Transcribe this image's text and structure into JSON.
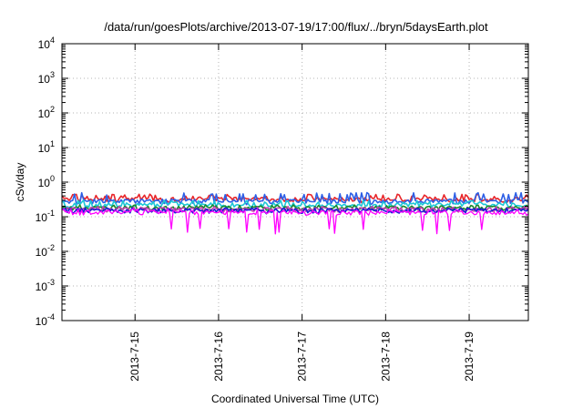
{
  "chart_data": {
    "type": "line",
    "title": "/data/run/goesPlots/archive/2013-07-19/17:00/flux/../bryn/5daysEarth.plot",
    "xlabel": "Coordinated Universal Time (UTC)",
    "ylabel": "cSv/day",
    "yscale": "log",
    "ylim": [
      0.0001,
      10000
    ],
    "xlim": [
      "2013-07-14 03:00",
      "2013-07-19 17:00"
    ],
    "grid": true,
    "y_ticks": [
      {
        "base": "10",
        "exp": "-4",
        "value": 0.0001
      },
      {
        "base": "10",
        "exp": "-3",
        "value": 0.001
      },
      {
        "base": "10",
        "exp": "-2",
        "value": 0.01
      },
      {
        "base": "10",
        "exp": "-1",
        "value": 0.1
      },
      {
        "base": "10",
        "exp": "0",
        "value": 1
      },
      {
        "base": "10",
        "exp": "1",
        "value": 10
      },
      {
        "base": "10",
        "exp": "2",
        "value": 100
      },
      {
        "base": "10",
        "exp": "3",
        "value": 1000
      },
      {
        "base": "10",
        "exp": "4",
        "value": 10000
      }
    ],
    "x_ticks": [
      {
        "label": "2013-7-15",
        "value": "2013-07-15 00:00"
      },
      {
        "label": "2013-7-16",
        "value": "2013-07-16 00:00"
      },
      {
        "label": "2013-7-17",
        "value": "2013-07-17 00:00"
      },
      {
        "label": "2013-7-18",
        "value": "2013-07-18 00:00"
      },
      {
        "label": "2013-7-19",
        "value": "2013-07-19 00:00"
      }
    ],
    "series": [
      {
        "color": "#e8262a",
        "approx_level": 0.32,
        "approx_range": [
          0.25,
          0.45
        ]
      },
      {
        "color": "#2d5fe6",
        "approx_level": 0.28,
        "approx_range": [
          0.2,
          0.5
        ]
      },
      {
        "color": "#1cc7d6",
        "approx_level": 0.22,
        "approx_range": [
          0.17,
          0.3
        ]
      },
      {
        "color": "#1a8a2e",
        "approx_level": 0.18,
        "approx_range": [
          0.15,
          0.22
        ]
      },
      {
        "color": "#c23fae",
        "approx_level": 0.16,
        "approx_range": [
          0.13,
          0.2
        ]
      },
      {
        "color": "#1a1ad6",
        "approx_level": 0.15,
        "approx_range": [
          0.12,
          0.18
        ]
      },
      {
        "color": "#ff00ff",
        "approx_level": 0.13,
        "approx_range": [
          0.03,
          0.17
        ]
      }
    ]
  }
}
